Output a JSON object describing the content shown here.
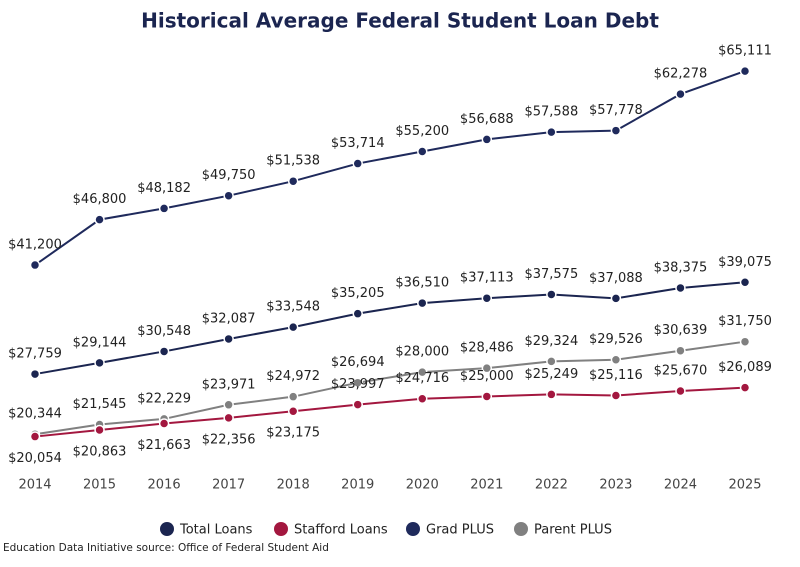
{
  "chart_data": {
    "type": "line",
    "title": "Historical Average Federal Student Loan Debt",
    "source": "Education Data Initiative source: Office of Federal Student Aid",
    "categories": [
      "2014",
      "2015",
      "2016",
      "2017",
      "2018",
      "2019",
      "2020",
      "2021",
      "2022",
      "2023",
      "2024",
      "2025"
    ],
    "ylim": [
      20000,
      65000
    ],
    "series": [
      {
        "name": "Total Loans",
        "color": "#1b2550",
        "values": [
          27759,
          29144,
          30548,
          32087,
          33548,
          35205,
          36510,
          37113,
          37575,
          37088,
          38375,
          39075
        ],
        "value_labels": [
          "$27,759",
          "$29,144",
          "$30,548",
          "$32,087",
          "$33,548",
          "$35,205",
          "$36,510",
          "$37,113",
          "$37,575",
          "$37,088",
          "$38,375",
          "$39,075"
        ]
      },
      {
        "name": "Stafford Loans",
        "color": "#a3173f",
        "values": [
          20054,
          20863,
          21663,
          22356,
          23175,
          23997,
          24716,
          25000,
          25249,
          25116,
          25670,
          26089
        ],
        "value_labels": [
          "$20,054",
          "$20,863",
          "$21,663",
          "$22,356",
          "$23,175",
          "$23,997",
          "$24,716",
          "$25,000",
          "$25,249",
          "$25,116",
          "$25,670",
          "$26,089"
        ]
      },
      {
        "name": "Grad PLUS",
        "color": "#1f2a5c",
        "values": [
          41200,
          46800,
          48182,
          49750,
          51538,
          53714,
          55200,
          56688,
          57588,
          57778,
          62278,
          65111
        ],
        "value_labels": [
          "$41,200",
          "$46,800",
          "$48,182",
          "$49,750",
          "$51,538",
          "$53,714",
          "$55,200",
          "$56,688",
          "$57,588",
          "$57,778",
          "$62,278",
          "$65,111"
        ]
      },
      {
        "name": "Parent PLUS",
        "color": "#808080",
        "values": [
          20344,
          21545,
          22229,
          23971,
          24972,
          26694,
          28000,
          28486,
          29324,
          29526,
          30639,
          31750
        ],
        "value_labels": [
          "$20,344",
          "$21,545",
          "$22,229",
          "$23,971",
          "$24,972",
          "$26,694",
          "$28,000",
          "$28,486",
          "$29,324",
          "$29,526",
          "$30,639",
          "$31,750"
        ]
      }
    ]
  }
}
